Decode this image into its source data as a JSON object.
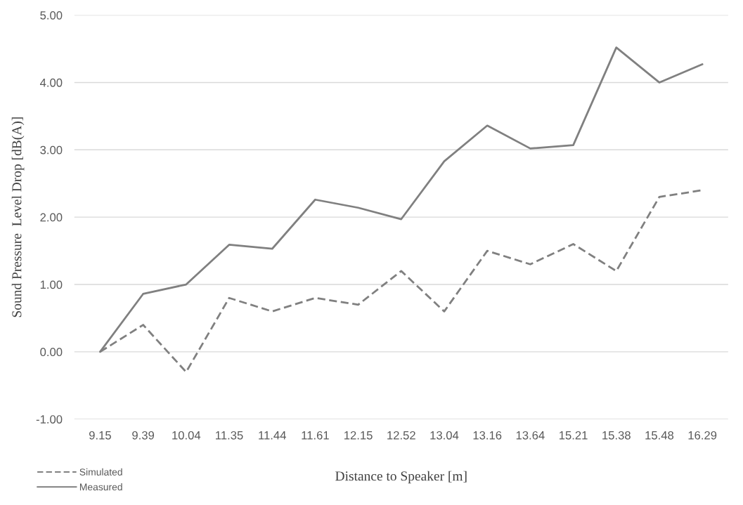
{
  "chart_data": {
    "type": "line",
    "xlabel": "Distance to Speaker [m]",
    "ylabel": "Sound Pressure  Level Drop [dB(A)]",
    "categories": [
      "9.15",
      "9.39",
      "10.04",
      "11.35",
      "11.44",
      "11.61",
      "12.15",
      "12.52",
      "13.04",
      "13.16",
      "13.64",
      "15.21",
      "15.38",
      "15.48",
      "16.29"
    ],
    "series": [
      {
        "name": "Simulated",
        "color": "#808080",
        "line_style": "dashed",
        "values": [
          0,
          0.4,
          -0.3,
          0.8,
          0.6,
          0.8,
          0.7,
          1.2,
          0.6,
          1.5,
          1.3,
          1.6,
          1.2,
          2.3,
          2.4
        ]
      },
      {
        "name": "Measured",
        "color": "#808080",
        "line_style": "solid",
        "values": [
          0,
          0.86,
          1.0,
          1.59,
          1.53,
          2.26,
          2.14,
          1.97,
          2.83,
          3.36,
          3.02,
          3.07,
          4.52,
          4.0,
          4.27
        ]
      }
    ],
    "ylim": [
      -1,
      5
    ],
    "yticks": [
      {
        "value": -1,
        "label": "-1.00"
      },
      {
        "value": 0,
        "label": "0.00"
      },
      {
        "value": 1,
        "label": "1.00"
      },
      {
        "value": 2,
        "label": "2.00"
      },
      {
        "value": 3,
        "label": "3.00"
      },
      {
        "value": 4,
        "label": "4.00"
      },
      {
        "value": 5,
        "label": "5.00"
      }
    ],
    "grid": "y",
    "legend": "bottom left",
    "marker": "none"
  }
}
